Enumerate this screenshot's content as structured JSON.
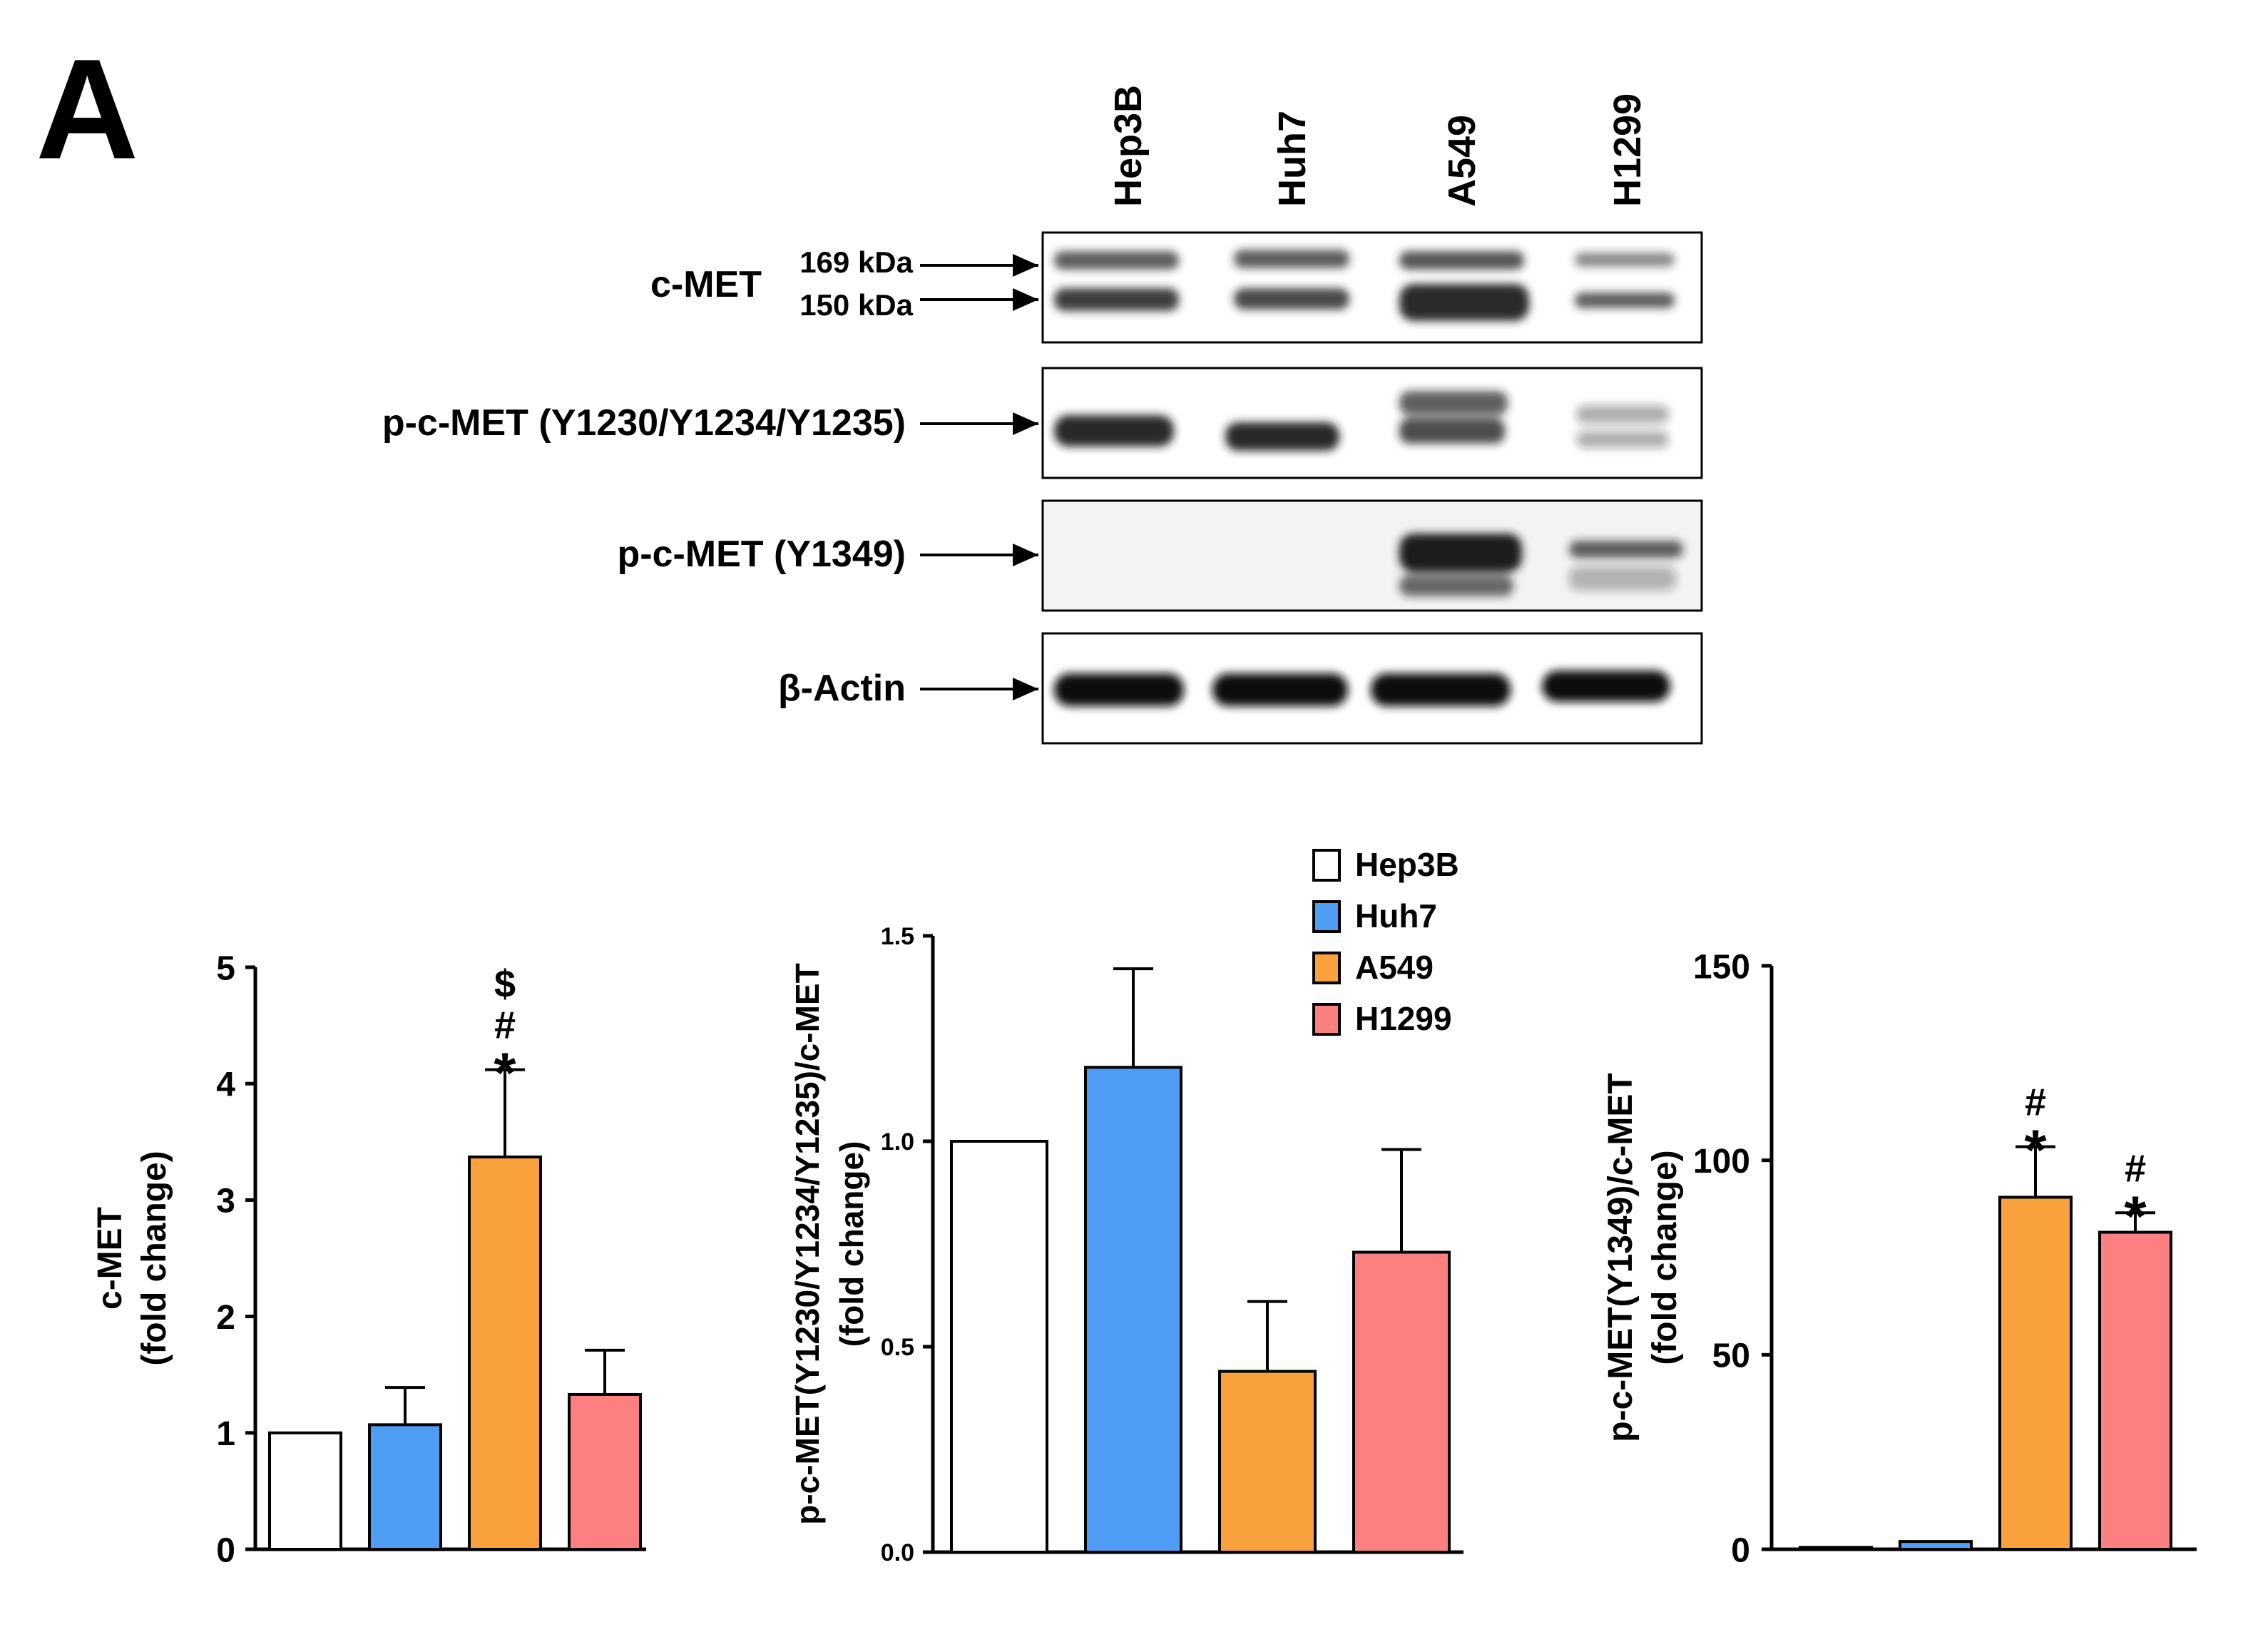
{
  "panel_letter": "A",
  "blot": {
    "lanes": [
      "Hep3B",
      "Huh7",
      "A549",
      "H1299"
    ],
    "rows": [
      {
        "label": "c-MET",
        "markers": [
          "169 kDa",
          "150 kDa"
        ]
      },
      {
        "label": "p-c-MET (Y1230/Y1234/Y1235)"
      },
      {
        "label": "p-c-MET (Y1349)"
      },
      {
        "label": "β-Actin"
      }
    ]
  },
  "legend": {
    "items": [
      {
        "label": "Hep3B",
        "color": "#ffffff"
      },
      {
        "label": "Huh7",
        "color": "#4f9df5"
      },
      {
        "label": "A549",
        "color": "#f9a23d"
      },
      {
        "label": "H1299",
        "color": "#fc8080"
      }
    ]
  },
  "chart_data": [
    {
      "type": "bar",
      "categories": [
        "Hep3B",
        "Huh7",
        "A549",
        "H1299"
      ],
      "values": [
        1.0,
        1.07,
        3.37,
        1.33
      ],
      "errors": [
        0,
        0.32,
        0.75,
        0.38
      ],
      "annotations": [
        "",
        "",
        "*#$",
        ""
      ],
      "ylabel_lines": [
        "c-MET",
        "(fold change)"
      ],
      "ylim": [
        0,
        5
      ],
      "yticks": [
        "0",
        "1",
        "2",
        "3",
        "4",
        "5"
      ],
      "colors": [
        "#ffffff",
        "#4f9df5",
        "#f9a23d",
        "#fc8080"
      ]
    },
    {
      "type": "bar",
      "categories": [
        "Hep3B",
        "Huh7",
        "A549",
        "H1299"
      ],
      "values": [
        1.0,
        1.18,
        0.44,
        0.73
      ],
      "errors": [
        0,
        0.24,
        0.17,
        0.25
      ],
      "annotations": [
        "",
        "",
        "",
        ""
      ],
      "ylabel_lines": [
        "p-c-MET(Y1230/Y1234/Y1235)/c-MET",
        "(fold change)"
      ],
      "ylim": [
        0,
        1.5
      ],
      "yticks": [
        "0.0",
        "0.5",
        "1.0",
        "1.5"
      ],
      "colors": [
        "#ffffff",
        "#4f9df5",
        "#f9a23d",
        "#fc8080"
      ]
    },
    {
      "type": "bar",
      "categories": [
        "Hep3B",
        "Huh7",
        "A549",
        "H1299"
      ],
      "values": [
        0.5,
        2.0,
        90.5,
        81.5
      ],
      "errors": [
        0,
        0,
        13,
        5
      ],
      "annotations": [
        "",
        "",
        "*#",
        "*#"
      ],
      "ylabel_lines": [
        "p-c-MET(Y1349)/c-MET",
        "(fold change)"
      ],
      "ylim": [
        0,
        150
      ],
      "yticks": [
        "0",
        "50",
        "100",
        "150"
      ],
      "colors": [
        "#ffffff",
        "#4f9df5",
        "#f9a23d",
        "#fc8080"
      ]
    }
  ]
}
